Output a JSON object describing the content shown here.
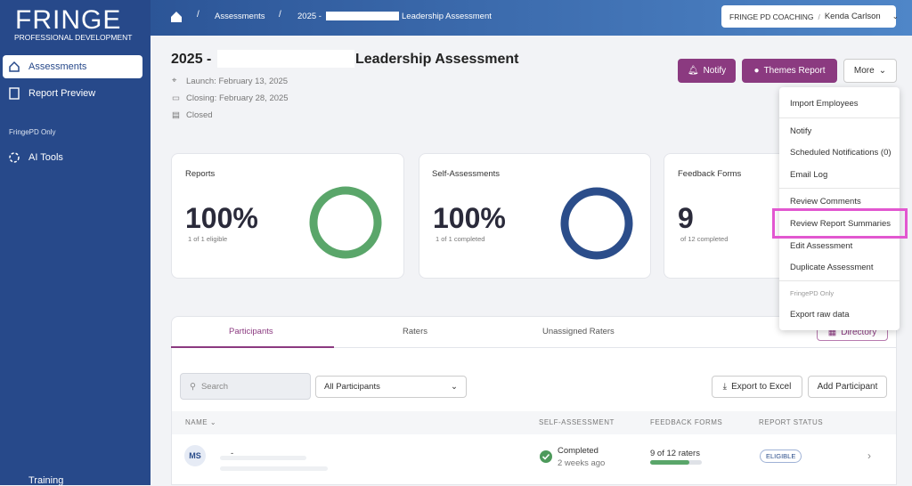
{
  "sidebar": {
    "logo_title": "FRINGE",
    "logo_subtitle": "PROFESSIONAL DEVELOPMENT",
    "nav": [
      "Assessments",
      "Report Preview"
    ],
    "section_label": "FringePD Only",
    "tools": "AI Tools",
    "bottom": "Training"
  },
  "topbar": {
    "breadcrumbs": [
      "Assessments",
      "2025 -",
      "Leadership Assessment"
    ],
    "account_org": "FRINGE PD COACHING",
    "account_separator": "/",
    "account_user": "Kenda Carlson"
  },
  "header": {
    "title_prefix": "2025 -",
    "title_suffix": "Leadership Assessment",
    "launch": "Launch: February 13, 2025",
    "closing": "Closing: February 28, 2025",
    "status": "Closed"
  },
  "buttons": {
    "notify": "Notify",
    "themes_report": "Themes Report",
    "more": "More"
  },
  "cards": [
    {
      "title": "Reports",
      "value": "100%",
      "caption": "1 of 1 eligible"
    },
    {
      "title": "Self-Assessments",
      "value": "100%",
      "caption": "1 of 1 completed"
    },
    {
      "title": "Feedback Forms",
      "value": "9",
      "caption": "of 12 completed"
    }
  ],
  "menu": {
    "items": [
      "Import Employees",
      "Notify",
      "Scheduled Notifications (0)",
      "Email Log",
      "Review Comments",
      "Review Report Summaries",
      "Edit Assessment",
      "Duplicate Assessment"
    ],
    "section_label": "FringePD Only",
    "extra": "Export raw data"
  },
  "tabs": [
    "Participants",
    "Raters",
    "Unassigned Raters"
  ],
  "directory": "Directory",
  "toolbar": {
    "search": "Search",
    "filter": "All Participants",
    "export": "Export to Excel",
    "add": "Add Participant"
  },
  "table": {
    "headers": [
      "NAME",
      "SELF-ASSESSMENT",
      "FEEDBACK FORMS",
      "REPORT STATUS"
    ],
    "rows": [
      {
        "initials": "MS",
        "name": "-",
        "self_status": "Completed",
        "self_time": "2 weeks ago",
        "feedback": "9 of 12 raters",
        "report_status": "ELIGIBLE"
      }
    ]
  }
}
